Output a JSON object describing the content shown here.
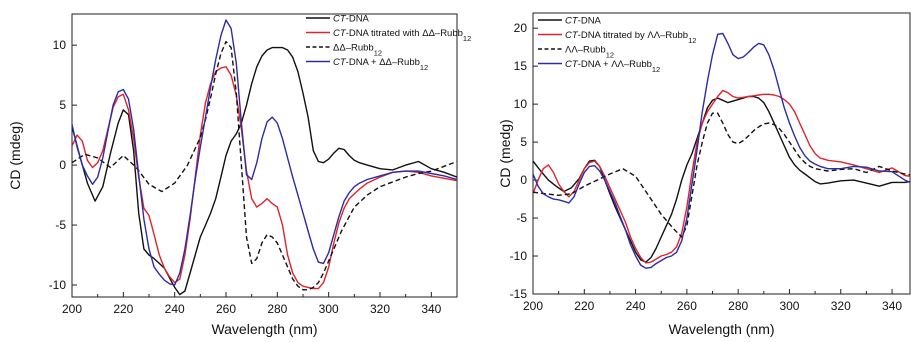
{
  "chart_data": [
    {
      "type": "line",
      "xlabel": "Wavelength (nm)",
      "ylabel": "CD (mdeg)",
      "xlim": [
        200,
        350
      ],
      "ylim": [
        -11,
        12.6
      ],
      "xticks": [
        "200",
        "220",
        "240",
        "260",
        "280",
        "300",
        "320",
        "340"
      ],
      "yticks": [
        "-10",
        "-5",
        "0",
        "5",
        "10"
      ],
      "grid": false,
      "legend_position": "top-right",
      "series": [
        {
          "label_prefix": "CT",
          "label_rest": "-DNA",
          "label_sub": "",
          "label_after": "",
          "color": "#111111",
          "dash": "solid",
          "x": [
            200,
            203,
            206,
            209,
            212,
            215,
            218,
            220,
            222,
            224,
            226,
            228,
            230,
            232,
            234,
            236,
            238,
            240,
            242,
            244,
            246,
            248,
            250,
            252,
            254,
            256,
            258,
            260,
            262,
            264,
            266,
            268,
            270,
            272,
            274,
            276,
            278,
            280,
            282,
            284,
            286,
            288,
            290,
            292,
            294,
            296,
            298,
            300,
            302,
            304,
            306,
            308,
            310,
            312,
            315,
            320,
            325,
            330,
            335,
            340,
            345,
            350
          ],
          "y": [
            3.2,
            0.8,
            -1.5,
            -3.0,
            -1.8,
            1.0,
            3.5,
            4.6,
            4.2,
            1.2,
            -4.0,
            -7.0,
            -7.5,
            -7.8,
            -8.2,
            -8.6,
            -9.4,
            -10.2,
            -10.8,
            -10.5,
            -9.0,
            -7.5,
            -6.0,
            -5.0,
            -4.0,
            -2.8,
            -1.0,
            0.8,
            2.0,
            2.6,
            3.5,
            5.0,
            6.8,
            8.2,
            9.1,
            9.6,
            9.8,
            9.8,
            9.8,
            9.6,
            9.0,
            7.8,
            6.0,
            4.0,
            1.2,
            0.3,
            0.2,
            0.5,
            1.0,
            1.4,
            1.3,
            0.8,
            0.4,
            0.2,
            0.0,
            -0.3,
            -0.4,
            0.0,
            0.3,
            -0.3,
            -0.6,
            -1.0
          ]
        },
        {
          "label_prefix": "CT",
          "label_rest": "-DNA titrated with ΔΔ–Rubb",
          "label_sub": "12",
          "label_after": "",
          "color": "#e0242a",
          "dash": "solid",
          "x": [
            200,
            202,
            204,
            206,
            208,
            210,
            212,
            214,
            216,
            218,
            220,
            222,
            224,
            226,
            228,
            230,
            232,
            234,
            236,
            238,
            240,
            242,
            244,
            246,
            248,
            250,
            252,
            254,
            256,
            258,
            260,
            262,
            264,
            266,
            268,
            270,
            272,
            274,
            276,
            278,
            280,
            282,
            284,
            286,
            288,
            290,
            292,
            294,
            296,
            298,
            300,
            302,
            304,
            306,
            308,
            310,
            312,
            315,
            320,
            325,
            330,
            335,
            340,
            345,
            350
          ],
          "y": [
            1.6,
            2.5,
            2.0,
            0.4,
            -0.2,
            0.2,
            1.2,
            3.0,
            4.8,
            5.7,
            5.9,
            4.6,
            2.2,
            -1.0,
            -3.6,
            -4.2,
            -5.8,
            -7.5,
            -8.6,
            -9.3,
            -9.8,
            -9.5,
            -7.5,
            -4.5,
            -1.0,
            2.5,
            5.2,
            6.8,
            7.8,
            8.1,
            8.2,
            7.5,
            5.8,
            3.0,
            -0.5,
            -2.8,
            -3.5,
            -3.2,
            -2.8,
            -3.2,
            -3.5,
            -5.0,
            -7.5,
            -9.0,
            -9.8,
            -10.1,
            -10.2,
            -10.3,
            -10.3,
            -9.8,
            -8.5,
            -6.5,
            -4.8,
            -3.6,
            -2.8,
            -2.4,
            -2.0,
            -1.5,
            -1.0,
            -0.6,
            -0.5,
            -0.6,
            -0.9,
            -1.1,
            -1.3
          ]
        },
        {
          "label_prefix": "",
          "label_rest": "ΔΔ–Rubb",
          "label_sub": "12",
          "label_after": "",
          "color": "#111111",
          "dash": "dashed",
          "x": [
            200,
            205,
            210,
            215,
            220,
            225,
            230,
            235,
            240,
            245,
            250,
            252,
            254,
            256,
            258,
            260,
            262,
            264,
            266,
            268,
            270,
            272,
            274,
            276,
            278,
            280,
            282,
            284,
            286,
            288,
            290,
            292,
            294,
            296,
            298,
            300,
            305,
            310,
            315,
            320,
            325,
            330,
            335,
            340,
            345,
            350
          ],
          "y": [
            0.2,
            0.9,
            0.6,
            -0.2,
            0.8,
            -0.2,
            -1.6,
            -2.2,
            -1.5,
            0.0,
            2.3,
            3.8,
            5.6,
            7.6,
            9.3,
            10.3,
            9.8,
            6.0,
            0.0,
            -6.0,
            -8.2,
            -7.8,
            -6.5,
            -5.8,
            -6.0,
            -6.5,
            -7.5,
            -8.5,
            -9.5,
            -10.1,
            -10.4,
            -10.4,
            -10.2,
            -9.8,
            -9.0,
            -8.0,
            -5.5,
            -3.5,
            -2.5,
            -1.8,
            -1.4,
            -1.0,
            -0.7,
            -0.5,
            -0.1,
            0.3
          ]
        },
        {
          "label_prefix": "CT",
          "label_rest": "-DNA + ΔΔ–Rubb",
          "label_sub": "12",
          "label_after": "",
          "color": "#2c2ca8",
          "dash": "solid",
          "x": [
            200,
            202,
            204,
            206,
            208,
            210,
            212,
            214,
            216,
            218,
            220,
            222,
            224,
            226,
            228,
            230,
            232,
            234,
            236,
            238,
            240,
            242,
            244,
            246,
            248,
            250,
            252,
            254,
            256,
            258,
            260,
            262,
            264,
            266,
            268,
            270,
            272,
            274,
            276,
            278,
            280,
            282,
            284,
            286,
            288,
            290,
            292,
            294,
            296,
            298,
            300,
            302,
            304,
            306,
            308,
            310,
            312,
            315,
            320,
            325,
            330,
            335,
            340,
            345,
            350
          ],
          "y": [
            3.4,
            1.5,
            0.0,
            -0.9,
            -1.6,
            -1.0,
            0.6,
            2.8,
            5.0,
            6.1,
            6.3,
            5.5,
            3.0,
            -0.8,
            -4.5,
            -7.0,
            -8.5,
            -9.1,
            -9.6,
            -9.9,
            -10.0,
            -9.0,
            -7.0,
            -4.2,
            -1.2,
            1.5,
            4.0,
            6.5,
            8.8,
            10.8,
            12.1,
            11.4,
            8.5,
            3.5,
            -0.8,
            -1.2,
            0.2,
            2.2,
            3.6,
            4.0,
            3.5,
            2.2,
            0.6,
            -1.0,
            -2.5,
            -4.0,
            -5.5,
            -7.0,
            -8.1,
            -8.2,
            -7.3,
            -5.8,
            -4.3,
            -3.0,
            -2.3,
            -1.8,
            -1.5,
            -1.2,
            -0.9,
            -0.6,
            -0.5,
            -0.5,
            -0.7,
            -0.9,
            -1.2
          ]
        }
      ]
    },
    {
      "type": "line",
      "xlabel": "Wavelength (nm)",
      "ylabel": "CD (medg)",
      "xlim": [
        200,
        347
      ],
      "ylim": [
        -15,
        22
      ],
      "xticks": [
        "200",
        "220",
        "240",
        "260",
        "280",
        "300",
        "320",
        "340"
      ],
      "yticks": [
        "-15",
        "-10",
        "-5",
        "0",
        "5",
        "10",
        "15",
        "20"
      ],
      "grid": false,
      "legend_position": "top-left",
      "series": [
        {
          "label_prefix": "CT",
          "label_rest": "-DNA",
          "label_sub": "",
          "label_after": "",
          "color": "#111111",
          "dash": "solid",
          "x": [
            200,
            203,
            206,
            209,
            212,
            215,
            218,
            220,
            222,
            224,
            226,
            228,
            230,
            232,
            234,
            236,
            238,
            240,
            242,
            244,
            246,
            248,
            250,
            252,
            254,
            256,
            258,
            260,
            262,
            264,
            266,
            268,
            270,
            272,
            274,
            276,
            278,
            280,
            282,
            284,
            286,
            288,
            290,
            292,
            294,
            296,
            298,
            300,
            302,
            304,
            306,
            308,
            310,
            312,
            315,
            320,
            325,
            330,
            335,
            340,
            345,
            347
          ],
          "y": [
            2.5,
            1.2,
            0.0,
            -0.8,
            -1.5,
            -1.0,
            0.2,
            1.5,
            2.5,
            2.6,
            1.8,
            0.0,
            -1.8,
            -3.5,
            -5.0,
            -6.5,
            -8.0,
            -9.5,
            -10.5,
            -10.8,
            -10.2,
            -9.0,
            -7.5,
            -6.0,
            -4.5,
            -2.5,
            0.0,
            2.0,
            3.5,
            5.5,
            7.5,
            9.5,
            10.5,
            10.8,
            10.5,
            10.2,
            10.4,
            10.6,
            10.8,
            11.0,
            11.0,
            10.8,
            10.2,
            9.0,
            7.5,
            6.0,
            4.5,
            3.0,
            2.0,
            1.3,
            0.8,
            0.3,
            -0.2,
            -0.5,
            -0.4,
            -0.1,
            0.0,
            -0.4,
            -0.8,
            -0.3,
            -0.3,
            -0.2
          ]
        },
        {
          "label_prefix": "CT",
          "label_rest": "-DNA titrated by ΛΛ–Rubb",
          "label_sub": "12",
          "label_after": "",
          "color": "#e0242a",
          "dash": "solid",
          "x": [
            200,
            202,
            204,
            206,
            208,
            210,
            212,
            214,
            216,
            218,
            220,
            222,
            224,
            226,
            228,
            230,
            232,
            234,
            236,
            238,
            240,
            242,
            244,
            246,
            248,
            250,
            252,
            254,
            256,
            258,
            260,
            262,
            264,
            266,
            268,
            270,
            272,
            274,
            276,
            278,
            280,
            282,
            284,
            286,
            288,
            290,
            292,
            294,
            296,
            298,
            300,
            302,
            304,
            306,
            308,
            310,
            312,
            315,
            320,
            325,
            330,
            335,
            340,
            345,
            347
          ],
          "y": [
            -1.8,
            0.0,
            1.5,
            2.0,
            1.0,
            -0.5,
            -1.5,
            -2.2,
            -1.5,
            0.0,
            1.5,
            2.3,
            2.5,
            1.8,
            0.5,
            -1.0,
            -2.5,
            -4.0,
            -5.5,
            -7.5,
            -9.0,
            -10.2,
            -10.9,
            -10.8,
            -10.4,
            -10.0,
            -9.8,
            -9.5,
            -8.8,
            -7.0,
            -3.5,
            1.0,
            5.0,
            7.5,
            9.0,
            10.0,
            11.0,
            11.8,
            11.5,
            11.0,
            10.8,
            10.9,
            11.0,
            11.1,
            11.2,
            11.3,
            11.3,
            11.2,
            11.0,
            10.6,
            10.0,
            9.0,
            7.5,
            6.0,
            4.5,
            3.5,
            2.9,
            2.6,
            2.4,
            2.0,
            1.5,
            1.0,
            1.6,
            0.6,
            0.5
          ]
        },
        {
          "label_prefix": "",
          "label_rest": "ΛΛ–Rubb",
          "label_sub": "12",
          "label_after": "",
          "color": "#111111",
          "dash": "dashed",
          "x": [
            200,
            205,
            210,
            215,
            220,
            225,
            230,
            235,
            240,
            245,
            250,
            255,
            258,
            260,
            262,
            264,
            266,
            268,
            270,
            272,
            274,
            276,
            278,
            280,
            282,
            284,
            286,
            288,
            290,
            292,
            294,
            296,
            298,
            300,
            302,
            304,
            306,
            308,
            310,
            315,
            320,
            325,
            330,
            335,
            340,
            345,
            347
          ],
          "y": [
            -1.6,
            -1.8,
            -2.0,
            -1.8,
            -0.8,
            0.0,
            0.8,
            1.5,
            0.5,
            -2.0,
            -4.5,
            -6.5,
            -7.5,
            -6.0,
            -2.0,
            2.0,
            5.0,
            7.5,
            8.8,
            8.8,
            7.5,
            6.0,
            5.0,
            4.8,
            5.2,
            5.8,
            6.5,
            7.0,
            7.4,
            7.5,
            7.3,
            6.8,
            6.0,
            5.0,
            4.0,
            3.0,
            2.3,
            1.8,
            1.5,
            1.2,
            1.4,
            1.5,
            1.0,
            1.8,
            1.2,
            0.8,
            0.7
          ]
        },
        {
          "label_prefix": "CT",
          "label_rest": "-DNA + ΛΛ–Rubb",
          "label_sub": "12",
          "label_after": "",
          "color": "#2c2ca8",
          "dash": "solid",
          "x": [
            200,
            202,
            204,
            206,
            208,
            210,
            212,
            214,
            216,
            218,
            220,
            222,
            224,
            226,
            228,
            230,
            232,
            234,
            236,
            238,
            240,
            242,
            244,
            246,
            248,
            250,
            252,
            254,
            256,
            258,
            260,
            262,
            264,
            266,
            268,
            270,
            272,
            274,
            276,
            278,
            280,
            282,
            284,
            286,
            288,
            290,
            292,
            294,
            296,
            298,
            300,
            302,
            304,
            306,
            308,
            310,
            312,
            315,
            320,
            325,
            330,
            335,
            340,
            345,
            347
          ],
          "y": [
            0.8,
            -0.8,
            -1.8,
            -2.2,
            -2.5,
            -2.6,
            -2.8,
            -3.0,
            -2.2,
            -0.5,
            1.0,
            1.8,
            1.9,
            1.2,
            0.0,
            -1.5,
            -3.0,
            -4.8,
            -6.5,
            -8.5,
            -10.0,
            -11.2,
            -11.6,
            -11.5,
            -11.0,
            -10.6,
            -10.2,
            -10.0,
            -9.5,
            -8.0,
            -5.0,
            -0.5,
            4.0,
            9.0,
            13.0,
            16.5,
            19.2,
            19.3,
            18.0,
            16.5,
            16.0,
            16.2,
            16.8,
            17.5,
            18.0,
            17.8,
            16.5,
            14.5,
            12.0,
            9.5,
            7.5,
            5.8,
            4.3,
            3.2,
            2.5,
            2.1,
            1.8,
            1.5,
            1.5,
            1.8,
            1.7,
            1.2,
            1.1,
            0.0,
            -0.3
          ]
        }
      ]
    }
  ]
}
